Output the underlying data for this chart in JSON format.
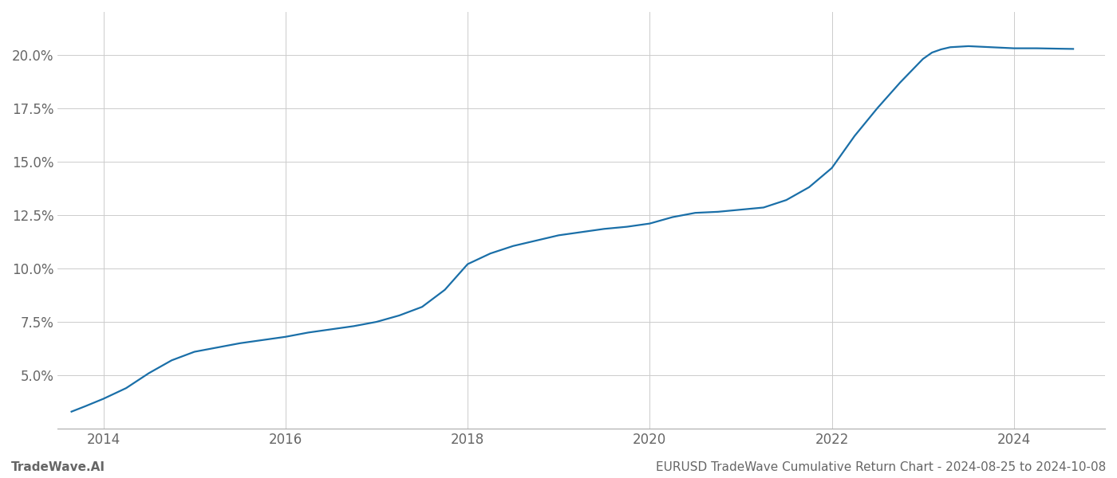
{
  "title": "",
  "footer_left": "TradeWave.AI",
  "footer_right": "EURUSD TradeWave Cumulative Return Chart - 2024-08-25 to 2024-10-08",
  "line_color": "#1a6fa8",
  "background_color": "#ffffff",
  "grid_color": "#cccccc",
  "x_years": [
    2013.65,
    2013.8,
    2014.0,
    2014.25,
    2014.5,
    2014.75,
    2015.0,
    2015.25,
    2015.5,
    2015.75,
    2016.0,
    2016.25,
    2016.5,
    2016.75,
    2017.0,
    2017.25,
    2017.5,
    2017.75,
    2018.0,
    2018.25,
    2018.5,
    2018.75,
    2019.0,
    2019.25,
    2019.5,
    2019.75,
    2020.0,
    2020.25,
    2020.5,
    2020.75,
    2021.0,
    2021.25,
    2021.5,
    2021.75,
    2022.0,
    2022.25,
    2022.5,
    2022.75,
    2023.0,
    2023.1,
    2023.2,
    2023.3,
    2023.5,
    2023.75,
    2024.0,
    2024.25,
    2024.5,
    2024.65
  ],
  "y_values": [
    3.3,
    3.55,
    3.9,
    4.4,
    5.1,
    5.7,
    6.1,
    6.3,
    6.5,
    6.65,
    6.8,
    7.0,
    7.15,
    7.3,
    7.5,
    7.8,
    8.2,
    9.0,
    10.2,
    10.7,
    11.05,
    11.3,
    11.55,
    11.7,
    11.85,
    11.95,
    12.1,
    12.4,
    12.6,
    12.65,
    12.75,
    12.85,
    13.2,
    13.8,
    14.7,
    16.2,
    17.5,
    18.7,
    19.8,
    20.1,
    20.25,
    20.35,
    20.4,
    20.35,
    20.3,
    20.3,
    20.28,
    20.27
  ],
  "xlim": [
    2013.5,
    2025.0
  ],
  "ylim": [
    2.5,
    22.0
  ],
  "yticks": [
    5.0,
    7.5,
    10.0,
    12.5,
    15.0,
    17.5,
    20.0
  ],
  "xticks": [
    2014,
    2016,
    2018,
    2020,
    2022,
    2024
  ],
  "line_width": 1.6,
  "tick_label_color": "#666666",
  "tick_label_fontsize": 12,
  "footer_fontsize": 11
}
